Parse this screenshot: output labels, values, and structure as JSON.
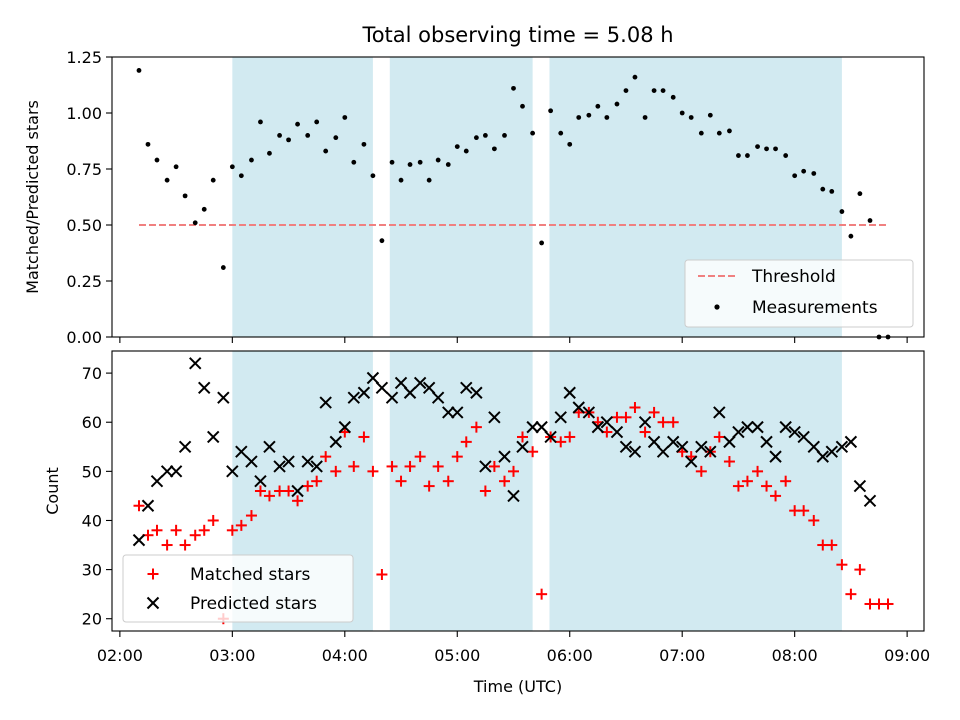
{
  "figure": {
    "title": "Total observing time = 5.08 h",
    "xlabel": "Time (UTC)",
    "x_tick_labels": [
      "02:00",
      "03:00",
      "04:00",
      "05:00",
      "06:00",
      "07:00",
      "08:00",
      "09:00"
    ],
    "x_tick_hours": [
      2,
      3,
      4,
      5,
      6,
      7,
      8,
      9
    ],
    "xlim": [
      1.93,
      9.15
    ],
    "shaded_intervals": [
      [
        3.0,
        4.25
      ],
      [
        4.4,
        5.67
      ],
      [
        5.82,
        8.42
      ]
    ],
    "shade_color": "#d2eaf1"
  },
  "chart_data": [
    {
      "type": "scatter",
      "ylabel": "Matched/Predicted stars",
      "ylim": [
        0,
        1.25
      ],
      "y_ticks": [
        0,
        0.25,
        0.5,
        0.75,
        1.0,
        1.25
      ],
      "y_tick_labels": [
        "0.00",
        "0.25",
        "0.50",
        "0.75",
        "1.00",
        "1.25"
      ],
      "legend_placement": "lower-right",
      "threshold": {
        "name": "Threshold",
        "value": 0.5,
        "x": [
          2.17,
          8.83
        ],
        "color": "#f08080"
      },
      "series": [
        {
          "name": "Measurements",
          "color": "#000000",
          "marker": "dot",
          "points": [
            [
              2.17,
              1.19
            ],
            [
              2.25,
              0.86
            ],
            [
              2.33,
              0.79
            ],
            [
              2.42,
              0.7
            ],
            [
              2.5,
              0.76
            ],
            [
              2.58,
              0.63
            ],
            [
              2.67,
              0.51
            ],
            [
              2.75,
              0.57
            ],
            [
              2.83,
              0.7
            ],
            [
              2.92,
              0.31
            ],
            [
              3.0,
              0.76
            ],
            [
              3.08,
              0.72
            ],
            [
              3.17,
              0.79
            ],
            [
              3.25,
              0.96
            ],
            [
              3.33,
              0.82
            ],
            [
              3.42,
              0.9
            ],
            [
              3.5,
              0.88
            ],
            [
              3.58,
              0.95
            ],
            [
              3.67,
              0.9
            ],
            [
              3.75,
              0.96
            ],
            [
              3.83,
              0.83
            ],
            [
              3.92,
              0.89
            ],
            [
              4.0,
              0.98
            ],
            [
              4.08,
              0.78
            ],
            [
              4.17,
              0.86
            ],
            [
              4.25,
              0.72
            ],
            [
              4.33,
              0.43
            ],
            [
              4.42,
              0.78
            ],
            [
              4.5,
              0.7
            ],
            [
              4.58,
              0.77
            ],
            [
              4.67,
              0.78
            ],
            [
              4.75,
              0.7
            ],
            [
              4.83,
              0.79
            ],
            [
              4.92,
              0.77
            ],
            [
              5.0,
              0.85
            ],
            [
              5.08,
              0.83
            ],
            [
              5.17,
              0.89
            ],
            [
              5.25,
              0.9
            ],
            [
              5.33,
              0.84
            ],
            [
              5.42,
              0.9
            ],
            [
              5.5,
              1.11
            ],
            [
              5.58,
              1.03
            ],
            [
              5.67,
              0.91
            ],
            [
              5.75,
              0.42
            ],
            [
              5.83,
              1.01
            ],
            [
              5.92,
              0.91
            ],
            [
              6.0,
              0.86
            ],
            [
              6.08,
              0.98
            ],
            [
              6.17,
              0.99
            ],
            [
              6.25,
              1.03
            ],
            [
              6.33,
              0.98
            ],
            [
              6.42,
              1.04
            ],
            [
              6.5,
              1.1
            ],
            [
              6.58,
              1.16
            ],
            [
              6.67,
              0.98
            ],
            [
              6.75,
              1.1
            ],
            [
              6.83,
              1.1
            ],
            [
              6.92,
              1.07
            ],
            [
              7.0,
              1.0
            ],
            [
              7.08,
              0.98
            ],
            [
              7.17,
              0.91
            ],
            [
              7.25,
              0.99
            ],
            [
              7.33,
              0.91
            ],
            [
              7.42,
              0.92
            ],
            [
              7.5,
              0.81
            ],
            [
              7.58,
              0.81
            ],
            [
              7.67,
              0.85
            ],
            [
              7.75,
              0.84
            ],
            [
              7.83,
              0.84
            ],
            [
              7.92,
              0.81
            ],
            [
              8.0,
              0.72
            ],
            [
              8.08,
              0.74
            ],
            [
              8.17,
              0.73
            ],
            [
              8.25,
              0.66
            ],
            [
              8.33,
              0.65
            ],
            [
              8.42,
              0.56
            ],
            [
              8.5,
              0.45
            ],
            [
              8.58,
              0.64
            ],
            [
              8.67,
              0.52
            ],
            [
              8.75,
              0.0
            ],
            [
              8.83,
              0.0
            ]
          ]
        }
      ]
    },
    {
      "type": "scatter",
      "ylabel": "Count",
      "ylim": [
        17.5,
        74.5
      ],
      "y_ticks": [
        20,
        30,
        40,
        50,
        60,
        70
      ],
      "y_tick_labels": [
        "20",
        "30",
        "40",
        "50",
        "60",
        "70"
      ],
      "legend_placement": "lower-left",
      "series": [
        {
          "name": "Matched stars",
          "color": "#ff0000",
          "marker": "plus",
          "points": [
            [
              2.17,
              43
            ],
            [
              2.25,
              37
            ],
            [
              2.33,
              38
            ],
            [
              2.42,
              35
            ],
            [
              2.5,
              38
            ],
            [
              2.58,
              35
            ],
            [
              2.67,
              37
            ],
            [
              2.75,
              38
            ],
            [
              2.83,
              40
            ],
            [
              2.92,
              20
            ],
            [
              3.0,
              38
            ],
            [
              3.08,
              39
            ],
            [
              3.17,
              41
            ],
            [
              3.25,
              46
            ],
            [
              3.33,
              45
            ],
            [
              3.42,
              46
            ],
            [
              3.5,
              46
            ],
            [
              3.58,
              44
            ],
            [
              3.67,
              47
            ],
            [
              3.75,
              48
            ],
            [
              3.83,
              53
            ],
            [
              3.92,
              50
            ],
            [
              4.0,
              58
            ],
            [
              4.08,
              51
            ],
            [
              4.17,
              57
            ],
            [
              4.25,
              50
            ],
            [
              4.33,
              29
            ],
            [
              4.42,
              51
            ],
            [
              4.5,
              48
            ],
            [
              4.58,
              51
            ],
            [
              4.67,
              53
            ],
            [
              4.75,
              47
            ],
            [
              4.83,
              51
            ],
            [
              4.92,
              48
            ],
            [
              5.0,
              53
            ],
            [
              5.08,
              56
            ],
            [
              5.17,
              59
            ],
            [
              5.25,
              46
            ],
            [
              5.33,
              51
            ],
            [
              5.42,
              48
            ],
            [
              5.5,
              50
            ],
            [
              5.58,
              57
            ],
            [
              5.67,
              54
            ],
            [
              5.75,
              25
            ],
            [
              5.83,
              57
            ],
            [
              5.92,
              56
            ],
            [
              6.0,
              57
            ],
            [
              6.08,
              62
            ],
            [
              6.17,
              62
            ],
            [
              6.25,
              60
            ],
            [
              6.33,
              58
            ],
            [
              6.42,
              61
            ],
            [
              6.5,
              61
            ],
            [
              6.58,
              63
            ],
            [
              6.67,
              58
            ],
            [
              6.75,
              62
            ],
            [
              6.83,
              60
            ],
            [
              6.92,
              60
            ],
            [
              7.0,
              54
            ],
            [
              7.08,
              53
            ],
            [
              7.17,
              50
            ],
            [
              7.25,
              54
            ],
            [
              7.33,
              57
            ],
            [
              7.42,
              52
            ],
            [
              7.5,
              47
            ],
            [
              7.58,
              48
            ],
            [
              7.67,
              50
            ],
            [
              7.75,
              47
            ],
            [
              7.83,
              45
            ],
            [
              7.92,
              48
            ],
            [
              8.0,
              42
            ],
            [
              8.08,
              42
            ],
            [
              8.17,
              40
            ],
            [
              8.25,
              35
            ],
            [
              8.33,
              35
            ],
            [
              8.42,
              31
            ],
            [
              8.5,
              25
            ],
            [
              8.58,
              30
            ],
            [
              8.67,
              23
            ],
            [
              8.75,
              23
            ],
            [
              8.83,
              23
            ]
          ]
        },
        {
          "name": "Predicted stars",
          "color": "#000000",
          "marker": "x",
          "points": [
            [
              2.17,
              36
            ],
            [
              2.25,
              43
            ],
            [
              2.33,
              48
            ],
            [
              2.42,
              50
            ],
            [
              2.5,
              50
            ],
            [
              2.58,
              55
            ],
            [
              2.67,
              72
            ],
            [
              2.75,
              67
            ],
            [
              2.83,
              57
            ],
            [
              2.92,
              65
            ],
            [
              3.0,
              50
            ],
            [
              3.08,
              54
            ],
            [
              3.17,
              52
            ],
            [
              3.25,
              48
            ],
            [
              3.33,
              55
            ],
            [
              3.42,
              51
            ],
            [
              3.5,
              52
            ],
            [
              3.58,
              46
            ],
            [
              3.67,
              52
            ],
            [
              3.75,
              51
            ],
            [
              3.83,
              64
            ],
            [
              3.92,
              56
            ],
            [
              4.0,
              59
            ],
            [
              4.08,
              65
            ],
            [
              4.17,
              66
            ],
            [
              4.25,
              69
            ],
            [
              4.33,
              67
            ],
            [
              4.42,
              65
            ],
            [
              4.5,
              68
            ],
            [
              4.58,
              66
            ],
            [
              4.67,
              68
            ],
            [
              4.75,
              67
            ],
            [
              4.83,
              65
            ],
            [
              4.92,
              62
            ],
            [
              5.0,
              62
            ],
            [
              5.08,
              67
            ],
            [
              5.17,
              66
            ],
            [
              5.25,
              51
            ],
            [
              5.33,
              61
            ],
            [
              5.42,
              53
            ],
            [
              5.5,
              45
            ],
            [
              5.58,
              55
            ],
            [
              5.67,
              59
            ],
            [
              5.75,
              59
            ],
            [
              5.83,
              57
            ],
            [
              5.92,
              61
            ],
            [
              6.0,
              66
            ],
            [
              6.08,
              63
            ],
            [
              6.17,
              62
            ],
            [
              6.25,
              59
            ],
            [
              6.33,
              60
            ],
            [
              6.42,
              58
            ],
            [
              6.5,
              55
            ],
            [
              6.58,
              54
            ],
            [
              6.67,
              60
            ],
            [
              6.75,
              56
            ],
            [
              6.83,
              54
            ],
            [
              6.92,
              56
            ],
            [
              7.0,
              55
            ],
            [
              7.08,
              52
            ],
            [
              7.17,
              55
            ],
            [
              7.25,
              54
            ],
            [
              7.33,
              62
            ],
            [
              7.42,
              56
            ],
            [
              7.5,
              58
            ],
            [
              7.58,
              59
            ],
            [
              7.67,
              59
            ],
            [
              7.75,
              56
            ],
            [
              7.83,
              53
            ],
            [
              7.92,
              59
            ],
            [
              8.0,
              58
            ],
            [
              8.08,
              57
            ],
            [
              8.17,
              55
            ],
            [
              8.25,
              53
            ],
            [
              8.33,
              54
            ],
            [
              8.42,
              55
            ],
            [
              8.5,
              56
            ],
            [
              8.58,
              47
            ],
            [
              8.67,
              44
            ]
          ]
        }
      ]
    }
  ]
}
